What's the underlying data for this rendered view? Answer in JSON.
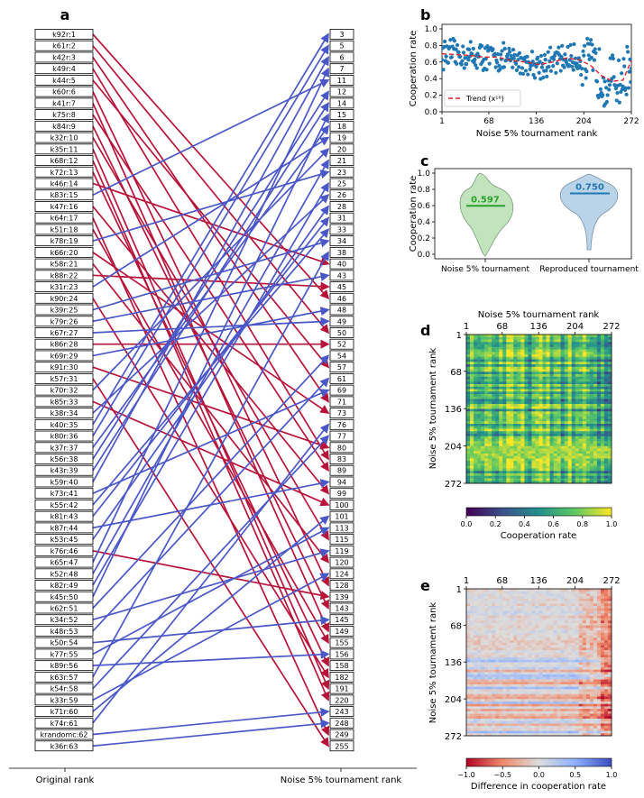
{
  "panel_labels": {
    "a": "a",
    "b": "b",
    "c": "c",
    "d": "d",
    "e": "e"
  },
  "colors": {
    "up": "#4a57c8",
    "down": "#b8143a",
    "trend": "#e0202a",
    "scatter": "#1f77b4",
    "violin_left": "#2ca02c",
    "violin_right": "#1f77b4"
  },
  "chart_data": [
    {
      "panel": "a",
      "type": "bump",
      "xlabel_left": "Original rank",
      "xlabel_right": "Noise 5% tournament rank",
      "left_labels": [
        "k92r:1",
        "k61r:2",
        "k42r:3",
        "k49r:4",
        "k44r:5",
        "k60r:6",
        "k41r:7",
        "k75r:8",
        "k84r:9",
        "k32r:10",
        "k35r:11",
        "k68r:12",
        "k72r:13",
        "k46r:14",
        "k83r:15",
        "k47r:16",
        "k64r:17",
        "k51r:18",
        "k78r:19",
        "k66r:20",
        "k58r:21",
        "k88r:22",
        "k31r:23",
        "k90r:24",
        "k39r:25",
        "k79r:26",
        "k67r:27",
        "k86r:28",
        "k69r:29",
        "k91r:30",
        "k57r:31",
        "k70r:32",
        "k85r:33",
        "k38r:34",
        "k40r:35",
        "k80r:36",
        "k37r:37",
        "k56r:38",
        "k43r:39",
        "k59r:40",
        "k73r:41",
        "k55r:42",
        "k81r:43",
        "k87r:44",
        "k53r:45",
        "k76r:46",
        "k65r:47",
        "k52r:48",
        "k82r:49",
        "k45r:50",
        "k62r:51",
        "k34r:52",
        "k48r:53",
        "k50r:54",
        "k77r:55",
        "k89r:56",
        "k63r:57",
        "k54r:58",
        "k33r:59",
        "k71r:60",
        "k74r:61",
        "krandomc:62",
        "k36r:63"
      ],
      "right_labels": [
        "3",
        "5",
        "6",
        "7",
        "11",
        "12",
        "14",
        "15",
        "18",
        "19",
        "20",
        "21",
        "23",
        "25",
        "26",
        "28",
        "31",
        "33",
        "34",
        "38",
        "40",
        "43",
        "45",
        "46",
        "48",
        "49",
        "50",
        "52",
        "54",
        "57",
        "61",
        "69",
        "71",
        "73",
        "76",
        "77",
        "80",
        "83",
        "89",
        "94",
        "99",
        "100",
        "101",
        "113",
        "115",
        "119",
        "120",
        "124",
        "128",
        "139",
        "143",
        "145",
        "149",
        "155",
        "156",
        "158",
        "182",
        "191",
        "220",
        "243",
        "248",
        "249",
        "255"
      ],
      "mapping": [
        23,
        26,
        32,
        37,
        29,
        48,
        52,
        38,
        50,
        44,
        57,
        58,
        55,
        20,
        4,
        40,
        61,
        53,
        12,
        33,
        46,
        22,
        9,
        56,
        18,
        21,
        25,
        27,
        24,
        36,
        62,
        10,
        41,
        14,
        0,
        1,
        8,
        5,
        6,
        2,
        31,
        17,
        16,
        39,
        15,
        49,
        3,
        11,
        13,
        7,
        28,
        45,
        30,
        51,
        43,
        54,
        19,
        35,
        47,
        42,
        34,
        59,
        60
      ]
    },
    {
      "panel": "b",
      "type": "scatter",
      "xlabel": "Noise 5% tournament rank",
      "ylabel": "Cooperation rate",
      "xlim": [
        1,
        272
      ],
      "ylim": [
        0.0,
        1.0
      ],
      "xticks": [
        "1",
        "68",
        "136",
        "204",
        "272"
      ],
      "yticks": [
        "0.0",
        "0.2",
        "0.4",
        "0.6",
        "0.8",
        "1.0"
      ],
      "legend": "Trend (x¹⁶)",
      "legend_position": "lower-left",
      "trend_x": [
        1,
        20,
        40,
        60,
        80,
        100,
        120,
        140,
        160,
        180,
        200,
        215,
        230,
        245,
        260,
        272
      ],
      "trend_y": [
        0.7,
        0.69,
        0.68,
        0.66,
        0.66,
        0.62,
        0.6,
        0.57,
        0.6,
        0.65,
        0.62,
        0.55,
        0.43,
        0.37,
        0.38,
        0.62
      ]
    },
    {
      "panel": "c",
      "type": "violin",
      "ylabel": "Cooperation rate",
      "ylim": [
        0.0,
        1.0
      ],
      "yticks": [
        "0.0",
        "0.2",
        "0.4",
        "0.6",
        "0.8",
        "1.0"
      ],
      "categories": [
        "Noise 5% tournament",
        "Reproduced tournament"
      ],
      "means": [
        0.597,
        0.75
      ],
      "mean_labels": [
        "0.597",
        "0.750"
      ],
      "range": [
        [
          0.02,
          0.99
        ],
        [
          0.1,
          0.99
        ]
      ]
    },
    {
      "panel": "d",
      "type": "heatmap",
      "xlabel": "Noise 5% tournament rank",
      "ylabel": "Noise 5% tournament rank",
      "ticks": [
        "1",
        "68",
        "136",
        "204",
        "272"
      ],
      "colorbar_label": "Cooperation rate",
      "colorbar_ticks": [
        "0.0",
        "0.2",
        "0.4",
        "0.6",
        "0.8",
        "1.0"
      ],
      "colormap": "viridis"
    },
    {
      "panel": "e",
      "type": "heatmap",
      "xlabel": "Noise 5% tournament rank",
      "ylabel": "Noise 5% tournament rank",
      "ticks": [
        "1",
        "68",
        "136",
        "204",
        "272"
      ],
      "colorbar_label": "Difference in cooperation rate",
      "colorbar_ticks": [
        "−1.0",
        "−0.5",
        "0.0",
        "0.5",
        "1.0"
      ],
      "colormap": "coolwarm_r"
    }
  ]
}
